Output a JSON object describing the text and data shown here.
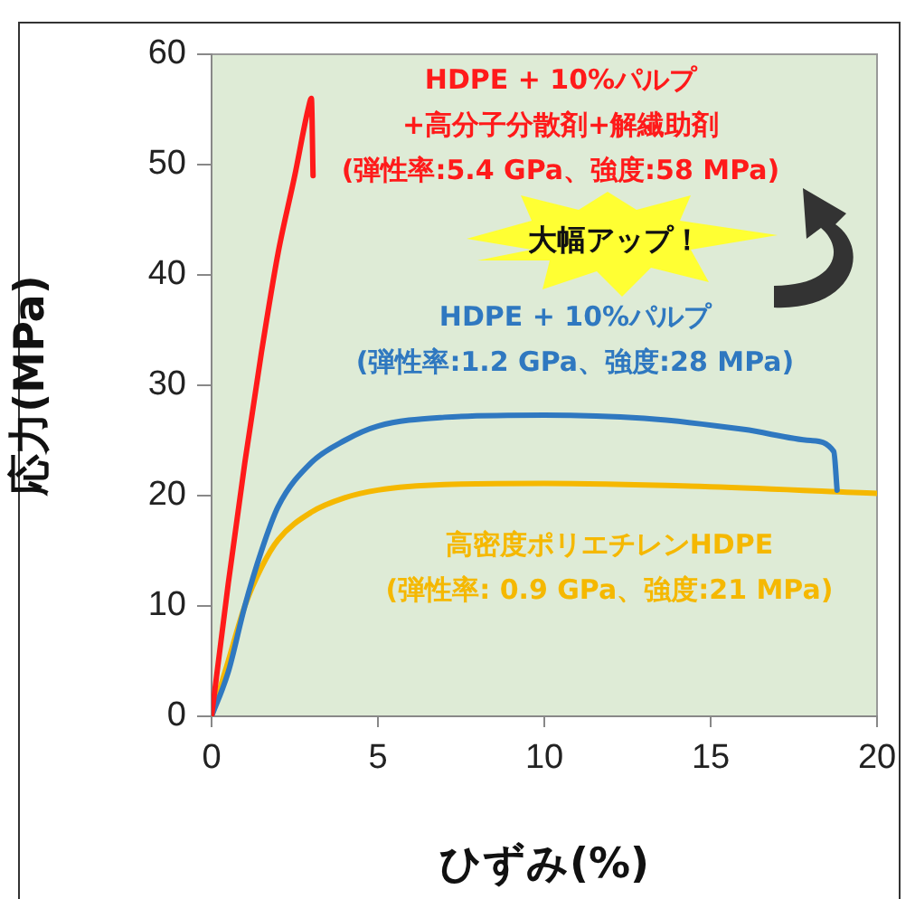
{
  "chart_data": {
    "type": "line",
    "xlabel": "ひずみ(%)",
    "ylabel": "応力(MPa)",
    "xlim": [
      0,
      20
    ],
    "xticks": [
      0,
      5,
      10,
      15,
      20
    ],
    "ylim": [
      0,
      60
    ],
    "yticks": [
      0,
      10,
      20,
      30,
      40,
      50,
      60
    ],
    "grid": false,
    "legend": false,
    "marker": "none",
    "line_style": "solid",
    "series": [
      {
        "name": "HDPE + 10%パルプ\n+高分子分散剤+解繊助剤\n(弾性率:5.4 GPa、強度:58 MPa)",
        "color": "#ff1a1a",
        "x": [
          0,
          0.5,
          1,
          1.5,
          2,
          2.5,
          2.9,
          3,
          3.05
        ],
        "values": [
          0,
          12,
          23,
          33,
          42,
          49,
          55,
          56,
          49
        ]
      },
      {
        "name": "HDPE + 10%パルプ\n(弾性率:1.2 GPa、強度:28 MPa)",
        "color": "#2f78c0",
        "x": [
          0,
          0.5,
          1,
          1.5,
          2,
          3,
          4,
          5,
          7,
          10,
          13,
          16,
          18,
          18.7,
          18.8
        ],
        "values": [
          0,
          4,
          10,
          15,
          19,
          23,
          25,
          26.3,
          27.1,
          27.3,
          27,
          26,
          25,
          24,
          20.5
        ]
      },
      {
        "name": "高密度ポリエチレンHDPE\n(弾性率: 0.9 GPa、強度:21 MPa)",
        "color": "#f5b800",
        "x": [
          0,
          0.5,
          1,
          1.5,
          2,
          3,
          4,
          5,
          7,
          10,
          15,
          20
        ],
        "values": [
          0,
          5,
          10,
          13.5,
          16,
          18.5,
          19.8,
          20.5,
          21,
          21.1,
          20.8,
          20.2
        ]
      }
    ],
    "annotations": [
      "大幅アップ！"
    ]
  }
}
